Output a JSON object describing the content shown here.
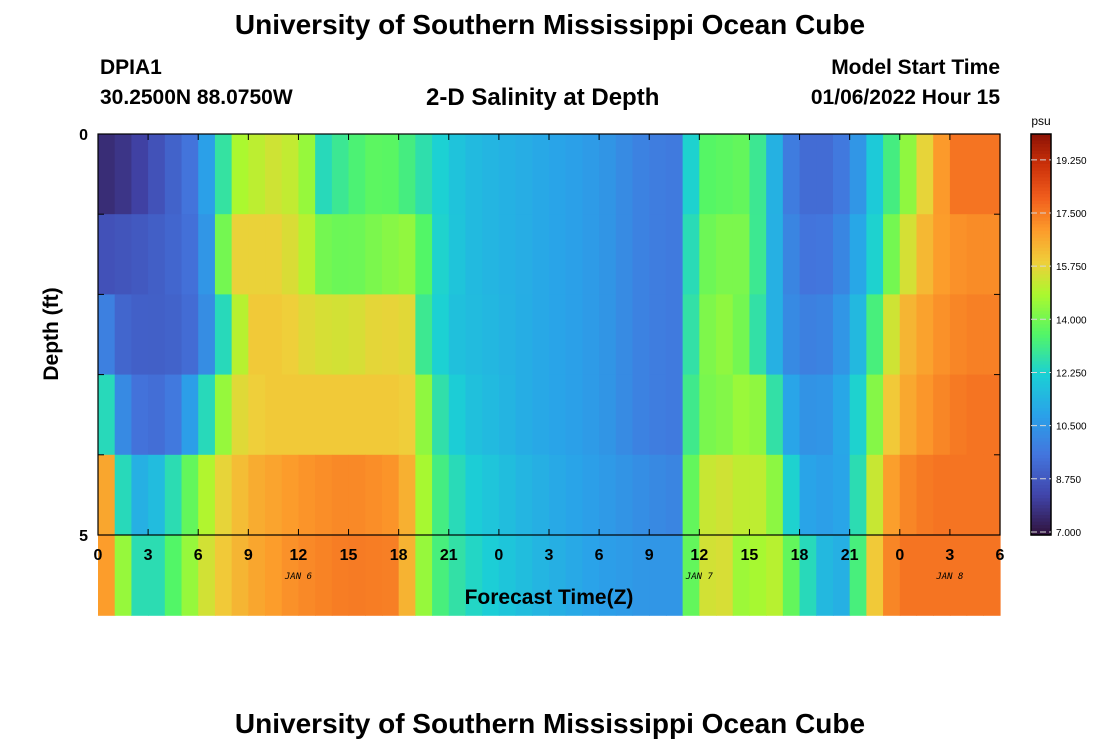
{
  "header": {
    "title": "University of Southern Mississippi Ocean Cube",
    "station": "DPIA1",
    "coords": "30.2500N  88.0750W",
    "subtitle": "2-D Salinity at Depth",
    "model_label": "Model Start Time",
    "model_date": "01/06/2022 Hour 15"
  },
  "footer": {
    "title": "University of Southern Mississippi Ocean Cube"
  },
  "chart_data": {
    "type": "heatmap",
    "title": "2-D Salinity at Depth",
    "xlabel": "Forecast Time(Z)",
    "ylabel": "Depth (ft)",
    "x_ticks": [
      "0",
      "3",
      "6",
      "9",
      "12",
      "15",
      "18",
      "21",
      "0",
      "3",
      "6",
      "9",
      "12",
      "15",
      "18",
      "21",
      "0",
      "3",
      "6"
    ],
    "x_day_labels": [
      {
        "label": "JAN 6",
        "hour": 12
      },
      {
        "label": "JAN 7",
        "hour": 36
      },
      {
        "label": "JAN 8",
        "hour": 51
      }
    ],
    "y_ticks": [
      "0",
      "5"
    ],
    "xlim": [
      0,
      54
    ],
    "ylim": [
      0,
      5
    ],
    "colorbar": {
      "unit": "psu",
      "min": 6.9,
      "max": 20.1,
      "ticks": [
        "19.250",
        "17.500",
        "15.750",
        "14.000",
        "12.250",
        "10.500",
        "8.750",
        "7.000"
      ],
      "tick_values": [
        19.25,
        17.5,
        15.75,
        14.0,
        12.25,
        10.5,
        8.75,
        7.0
      ]
    },
    "depth_layers": 5,
    "profiles": [
      [
        [
          0,
          7.5
        ],
        [
          2,
          7.9
        ],
        [
          4,
          8.8
        ],
        [
          5.5,
          9.5
        ],
        [
          6.5,
          10.8
        ],
        [
          7.5,
          12.8
        ],
        [
          8.5,
          14.8
        ],
        [
          11,
          15.5
        ],
        [
          12.5,
          14.5
        ],
        [
          13.5,
          12.5
        ],
        [
          15,
          13.2
        ],
        [
          17,
          13.8
        ],
        [
          18.5,
          13.2
        ],
        [
          20,
          12.4
        ],
        [
          22,
          11.6
        ],
        [
          26,
          11.1
        ],
        [
          30,
          10.6
        ],
        [
          33,
          9.8
        ],
        [
          34.5,
          9.7
        ],
        [
          35.2,
          11.5
        ],
        [
          36,
          13.5
        ],
        [
          39,
          13.8
        ],
        [
          39.8,
          12.5
        ],
        [
          40.5,
          11.3
        ],
        [
          41,
          10.2
        ],
        [
          42,
          9.3
        ],
        [
          44,
          9.3
        ],
        [
          45,
          10
        ],
        [
          46,
          11
        ],
        [
          46.5,
          12
        ],
        [
          47,
          12.8
        ],
        [
          48,
          13.6
        ],
        [
          49,
          15.2
        ],
        [
          50,
          16.3
        ],
        [
          51,
          17.6
        ],
        [
          54,
          17.6
        ]
      ],
      [
        [
          0,
          8.5
        ],
        [
          2,
          8.7
        ],
        [
          4,
          9.0
        ],
        [
          5.5,
          9.4
        ],
        [
          6.5,
          10.5
        ],
        [
          7,
          12
        ],
        [
          7.5,
          14
        ],
        [
          8.5,
          15.8
        ],
        [
          11,
          15.8
        ],
        [
          12.5,
          15
        ],
        [
          13.5,
          14
        ],
        [
          15,
          13.8
        ],
        [
          17,
          14.2
        ],
        [
          19,
          14.5
        ],
        [
          20,
          12.5
        ],
        [
          22,
          11.6
        ],
        [
          26,
          11.1
        ],
        [
          30,
          10.6
        ],
        [
          33,
          9.8
        ],
        [
          34.5,
          9.7
        ],
        [
          35.2,
          11.8
        ],
        [
          36,
          13.8
        ],
        [
          38,
          14.2
        ],
        [
          39,
          14
        ],
        [
          40,
          12
        ],
        [
          41,
          10.5
        ],
        [
          42,
          9.5
        ],
        [
          44,
          9.6
        ],
        [
          45,
          10.5
        ],
        [
          46,
          11.5
        ],
        [
          47,
          13
        ],
        [
          48,
          15
        ],
        [
          50,
          16.8
        ],
        [
          52,
          17.2
        ],
        [
          54,
          17.2
        ]
      ],
      [
        [
          0,
          10.5
        ],
        [
          1,
          9.2
        ],
        [
          3,
          8.9
        ],
        [
          5,
          9.1
        ],
        [
          6,
          9.5
        ],
        [
          7,
          11
        ],
        [
          8,
          14
        ],
        [
          9,
          16
        ],
        [
          11,
          16
        ],
        [
          13,
          15.5
        ],
        [
          15,
          15.4
        ],
        [
          17,
          15.8
        ],
        [
          19,
          15.6
        ],
        [
          19.5,
          13
        ],
        [
          21,
          11.8
        ],
        [
          26,
          11.1
        ],
        [
          30,
          10.6
        ],
        [
          33,
          9.8
        ],
        [
          34.5,
          9.7
        ],
        [
          35.2,
          12
        ],
        [
          36,
          14
        ],
        [
          37,
          14.3
        ],
        [
          38,
          14.5
        ],
        [
          39,
          13.5
        ],
        [
          40,
          12
        ],
        [
          41,
          10.5
        ],
        [
          42,
          9.8
        ],
        [
          44,
          10
        ],
        [
          45,
          11
        ],
        [
          46,
          12
        ],
        [
          47,
          14.5
        ],
        [
          48,
          16.2
        ],
        [
          50,
          17
        ],
        [
          52,
          17.4
        ],
        [
          54,
          17.4
        ]
      ],
      [
        [
          0,
          11.5
        ],
        [
          0.5,
          12.5
        ],
        [
          1,
          10.8
        ],
        [
          2,
          9.5
        ],
        [
          4,
          9.3
        ],
        [
          5,
          10
        ],
        [
          6,
          11.5
        ],
        [
          7,
          13.5
        ],
        [
          8,
          15.5
        ],
        [
          10,
          16
        ],
        [
          13,
          16
        ],
        [
          16,
          16
        ],
        [
          18,
          16
        ],
        [
          19,
          15.8
        ],
        [
          20,
          13
        ],
        [
          22,
          11.8
        ],
        [
          26,
          11.1
        ],
        [
          30,
          10.6
        ],
        [
          33,
          9.8
        ],
        [
          34.5,
          9.7
        ],
        [
          35.2,
          12.5
        ],
        [
          36,
          14
        ],
        [
          38,
          14.3
        ],
        [
          39,
          14.8
        ],
        [
          40,
          14
        ],
        [
          41,
          11.5
        ],
        [
          42,
          10.4
        ],
        [
          44,
          10.5
        ],
        [
          45,
          11.5
        ],
        [
          46,
          13
        ],
        [
          47,
          15.5
        ],
        [
          48,
          16.5
        ],
        [
          50,
          17.2
        ],
        [
          52,
          17.6
        ],
        [
          54,
          17.6
        ]
      ],
      [
        [
          0,
          17.2
        ],
        [
          1,
          16.2
        ],
        [
          1.5,
          12.5
        ],
        [
          2,
          11.3
        ],
        [
          3,
          11.2
        ],
        [
          4,
          12
        ],
        [
          5,
          13.2
        ],
        [
          6,
          14.3
        ],
        [
          7,
          15.5
        ],
        [
          9,
          16.5
        ],
        [
          12,
          17
        ],
        [
          15,
          17.3
        ],
        [
          18,
          17
        ],
        [
          19,
          16
        ],
        [
          20,
          13.5
        ],
        [
          22,
          12.2
        ],
        [
          26,
          11.3
        ],
        [
          30,
          10.7
        ],
        [
          33,
          10.2
        ],
        [
          34.5,
          10
        ],
        [
          35.2,
          13
        ],
        [
          36,
          15
        ],
        [
          37,
          15.5
        ],
        [
          39,
          15
        ],
        [
          40,
          15.2
        ],
        [
          41,
          13.5
        ],
        [
          42,
          11
        ],
        [
          44,
          10.7
        ],
        [
          45,
          11.2
        ],
        [
          46,
          14
        ],
        [
          47,
          16.5
        ],
        [
          48,
          17.2
        ],
        [
          50,
          17.6
        ],
        [
          54,
          17.6
        ]
      ],
      [
        [
          0,
          17.8
        ],
        [
          1,
          16
        ],
        [
          2,
          13
        ],
        [
          3,
          12.2
        ],
        [
          4,
          13
        ],
        [
          5,
          14
        ],
        [
          6,
          15
        ],
        [
          7,
          15.8
        ],
        [
          9,
          16.6
        ],
        [
          12,
          17.2
        ],
        [
          15,
          17.5
        ],
        [
          18,
          17.4
        ],
        [
          19,
          15.5
        ],
        [
          20,
          13.5
        ],
        [
          22,
          12.5
        ],
        [
          26,
          11.5
        ],
        [
          30,
          10.8
        ],
        [
          33,
          10.5
        ],
        [
          34.5,
          10.5
        ],
        [
          35.2,
          13
        ],
        [
          36,
          15
        ],
        [
          37,
          15.8
        ],
        [
          38,
          15.2
        ],
        [
          39,
          14
        ],
        [
          40,
          15.5
        ],
        [
          41,
          14.5
        ],
        [
          42,
          13
        ],
        [
          44,
          11
        ],
        [
          45,
          11.5
        ],
        [
          46,
          15
        ],
        [
          47,
          17
        ],
        [
          48,
          17.6
        ],
        [
          50,
          17.6
        ],
        [
          54,
          17.6
        ]
      ]
    ]
  }
}
